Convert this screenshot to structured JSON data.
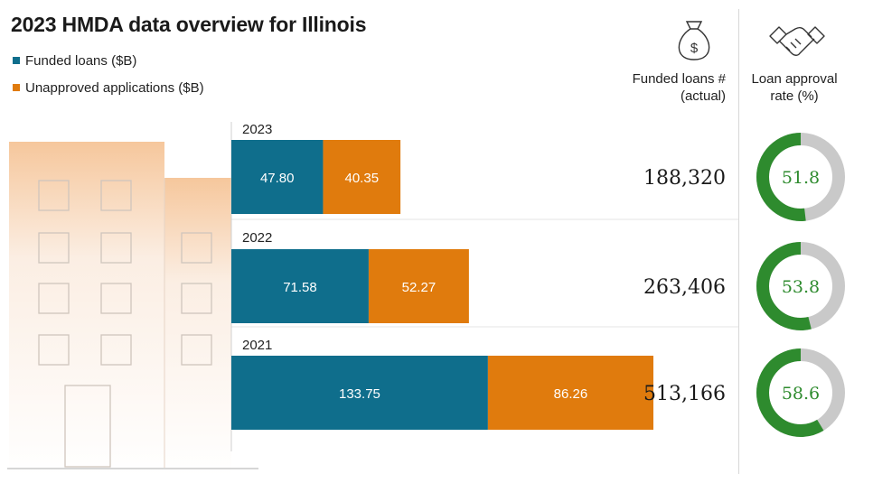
{
  "title": "2023 HMDA data overview for Illinois",
  "legend": {
    "funded": "Funded loans ($B)",
    "unapproved": "Unapproved applications ($B)"
  },
  "columns": {
    "funded_count": "Funded loans # (actual)",
    "approval_rate": "Loan approval rate (%)"
  },
  "colors": {
    "funded": "#0f6e8c",
    "unapproved": "#e07b0d",
    "ring": "#2e8b2e",
    "ring_rest": "#c9c9c9",
    "ring_text": "#2e8b2e"
  },
  "icons": {
    "funded_count": "money-bag-icon",
    "approval_rate": "handshake-icon",
    "decor": "building-illustration"
  },
  "chart_data": {
    "type": "bar",
    "orientation": "horizontal",
    "stacked": true,
    "title": "2023 HMDA data overview for Illinois",
    "categories": [
      "2023",
      "2022",
      "2021"
    ],
    "series": [
      {
        "name": "Funded loans ($B)",
        "values": [
          47.8,
          71.58,
          133.75
        ]
      },
      {
        "name": "Unapproved applications ($B)",
        "values": [
          40.35,
          52.27,
          86.26
        ]
      }
    ],
    "value_labels": [
      [
        "47.80",
        "71.58",
        "133.75"
      ],
      [
        "40.35",
        "52.27",
        "86.26"
      ]
    ],
    "funded_loans_count": [
      "188,320",
      "263,406",
      "513,166"
    ],
    "approval_rate": [
      51.8,
      53.8,
      58.6
    ],
    "approval_rate_labels": [
      "51.8",
      "53.8",
      "58.6"
    ],
    "xlim": [
      0,
      220.01
    ]
  }
}
